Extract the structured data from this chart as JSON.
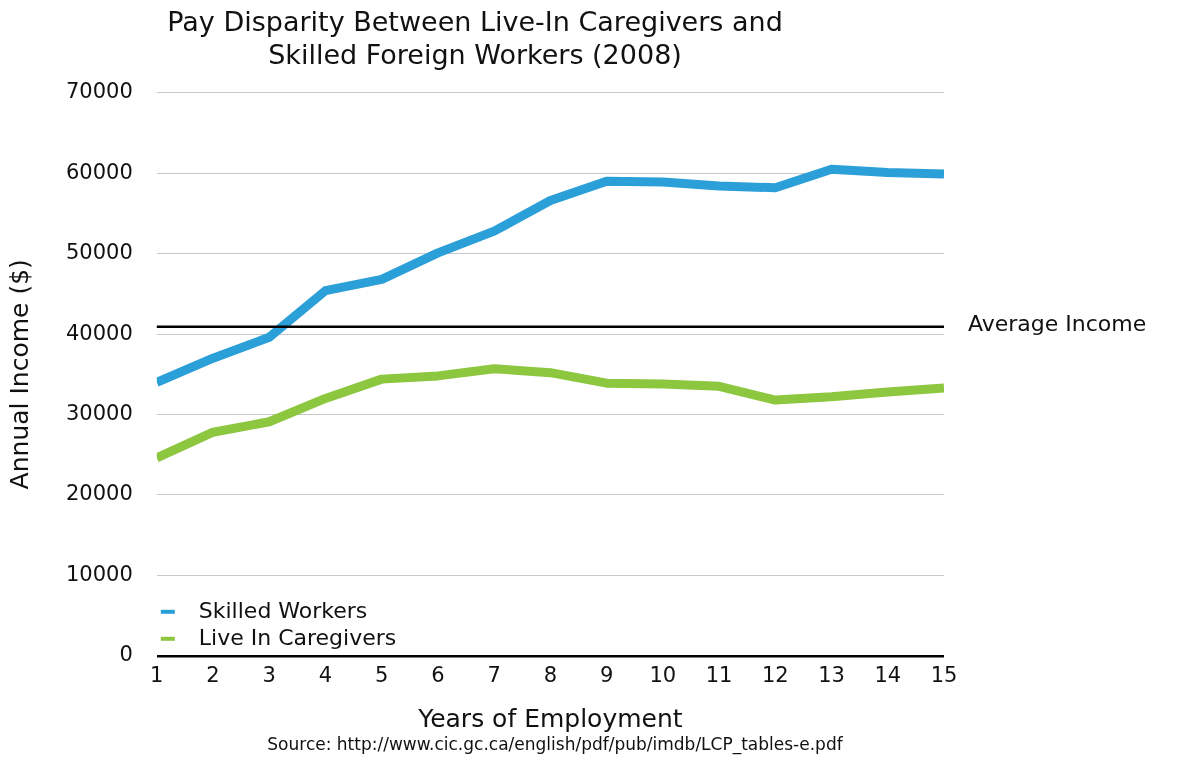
{
  "chart_data": {
    "type": "line",
    "title": "Pay Disparity Between Live-In Caregivers and Skilled Foreign Workers (2008)",
    "xlabel": "Years of Employment",
    "ylabel": "Annual Income ($)",
    "x": [
      1,
      2,
      3,
      4,
      5,
      6,
      7,
      8,
      9,
      10,
      11,
      12,
      13,
      14,
      15
    ],
    "xlim": [
      1,
      15
    ],
    "xticks": [
      1,
      2,
      3,
      4,
      5,
      6,
      7,
      8,
      9,
      10,
      11,
      12,
      13,
      14,
      15
    ],
    "series": [
      {
        "name": "Skilled Workers",
        "color": "#2a9fd8",
        "values": [
          34000,
          37000,
          39600,
          45400,
          46800,
          50100,
          52800,
          56600,
          59000,
          58900,
          58400,
          58200,
          60500,
          60100,
          59900
        ]
      },
      {
        "name": "Live In Caregivers",
        "color": "#8dc63f",
        "values": [
          24600,
          27800,
          29100,
          32000,
          34400,
          34800,
          35700,
          35200,
          33900,
          33800,
          33500,
          31800,
          32200,
          32800,
          33300
        ]
      }
    ],
    "ylim": [
      0,
      70000
    ],
    "yticks": [
      0,
      10000,
      20000,
      30000,
      40000,
      50000,
      60000,
      70000
    ],
    "grid": "y",
    "legend": "bottom left",
    "marker": "none",
    "line_style": "solid",
    "ref_lines": [
      {
        "axis": "y",
        "value": 40900,
        "label": "Average Income",
        "color": "#000000"
      }
    ],
    "annotations": [
      "Source: http://www.cic.gc.ca/english/pdf/pub/imdb/LCP_tables-e.pdf"
    ]
  }
}
